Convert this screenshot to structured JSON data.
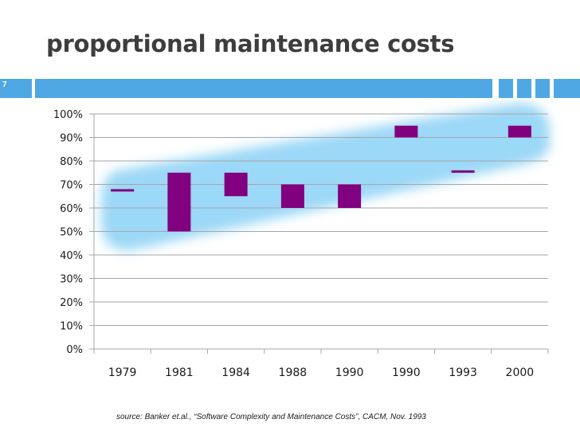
{
  "slide": {
    "title": "proportional maintenance costs",
    "number": "7",
    "source": "source: Banker et.al., “Software Complexity and Maintenance Costs”, CACM, Nov. 1993"
  },
  "colors": {
    "accent": "#4fa8e3",
    "bar": "#800080",
    "highlight": "#4ab8f0",
    "grid": "#a6a6a6",
    "text": "#3d3d3d"
  },
  "chart_data": {
    "type": "bar",
    "subtype": "floating-range",
    "title": "",
    "xlabel": "",
    "ylabel": "",
    "categories": [
      "1979",
      "1981",
      "1984",
      "1988",
      "1990",
      "1990",
      "1993",
      "2000"
    ],
    "ranges": [
      [
        67,
        68
      ],
      [
        50,
        75
      ],
      [
        65,
        75
      ],
      [
        60,
        70
      ],
      [
        60,
        70
      ],
      [
        90,
        95
      ],
      [
        75,
        76
      ],
      [
        90,
        95
      ]
    ],
    "ylim": [
      0,
      100
    ],
    "yticks": [
      "0%",
      "10%",
      "20%",
      "30%",
      "40%",
      "50%",
      "60%",
      "70%",
      "80%",
      "90%",
      "100%"
    ],
    "grid": true,
    "legend": "none",
    "highlight_band": "translucent blue band behind bars, rising from lower-left to upper-right"
  }
}
